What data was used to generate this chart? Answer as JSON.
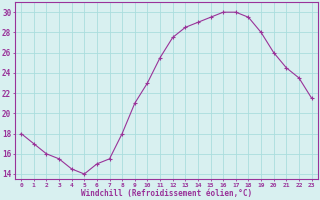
{
  "x": [
    0,
    1,
    2,
    3,
    4,
    5,
    6,
    7,
    8,
    9,
    10,
    11,
    12,
    13,
    14,
    15,
    16,
    17,
    18,
    19,
    20,
    21,
    22,
    23
  ],
  "y": [
    18,
    17,
    16,
    15.5,
    14.5,
    14,
    15,
    15.5,
    18,
    21,
    23,
    25.5,
    27.5,
    28.5,
    29,
    29.5,
    30,
    30,
    29.5,
    28,
    26,
    24.5,
    23.5,
    21.5
  ],
  "line_color": "#993399",
  "marker": "+",
  "bg_color": "#d8f0f0",
  "grid_color": "#aadddd",
  "xlabel": "Windchill (Refroidissement éolien,°C)",
  "xlabel_color": "#993399",
  "xtick_labels": [
    "0",
    "1",
    "2",
    "3",
    "4",
    "5",
    "6",
    "7",
    "8",
    "9",
    "10",
    "11",
    "12",
    "13",
    "14",
    "15",
    "16",
    "17",
    "18",
    "19",
    "20",
    "21",
    "22",
    "23"
  ],
  "ytick_values": [
    14,
    16,
    18,
    20,
    22,
    24,
    26,
    28,
    30
  ],
  "ylim": [
    13.5,
    31
  ],
  "xlim": [
    -0.5,
    23.5
  ],
  "tick_color": "#993399",
  "spine_color": "#993399"
}
